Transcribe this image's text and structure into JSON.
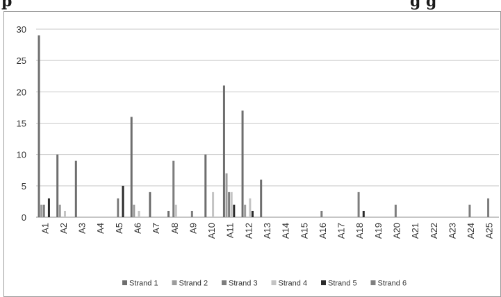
{
  "header_fragment": {
    "left_text": "p",
    "right_text": "g      g"
  },
  "chart_data": {
    "type": "bar",
    "title": "",
    "xlabel": "",
    "ylabel": "",
    "ylim": [
      0,
      30
    ],
    "yticks": [
      0,
      5,
      10,
      15,
      20,
      25,
      30
    ],
    "grid": true,
    "legend_position": "bottom",
    "categories": [
      "A1",
      "A2",
      "A3",
      "A4",
      "A5",
      "A6",
      "A7",
      "A8",
      "A9",
      "A10",
      "A11",
      "A12",
      "A13",
      "A14",
      "A15",
      "A16",
      "A17",
      "A18",
      "A19",
      "A20",
      "A21",
      "A22",
      "A23",
      "A24",
      "A25"
    ],
    "series": [
      {
        "name": "Strand 1",
        "color": "#6e6e6e",
        "values": [
          29,
          10,
          9,
          0,
          0,
          16,
          4,
          1,
          0,
          10,
          21,
          17,
          6,
          0,
          0,
          0,
          0,
          0,
          0,
          0,
          0,
          0,
          0,
          0,
          0
        ]
      },
      {
        "name": "Strand 2",
        "color": "#9c9c9c",
        "values": [
          2,
          2,
          0,
          0,
          0,
          2,
          0,
          0,
          0,
          0,
          7,
          2,
          0,
          0,
          0,
          0,
          0,
          0,
          0,
          0,
          0,
          0,
          0,
          0,
          0
        ]
      },
      {
        "name": "Strand 3",
        "color": "#7d7d7d",
        "values": [
          2,
          0,
          0,
          0,
          3,
          0,
          0,
          9,
          1,
          0,
          4,
          0,
          0,
          0,
          0,
          1,
          0,
          4,
          0,
          2,
          0,
          0,
          0,
          2,
          3
        ]
      },
      {
        "name": "Strand 4",
        "color": "#c4c4c4",
        "values": [
          0,
          1,
          0,
          0,
          0,
          1,
          0,
          2,
          0,
          4,
          4,
          3,
          0,
          0,
          0,
          0,
          0,
          0,
          0,
          0,
          0,
          0,
          0,
          0,
          0
        ]
      },
      {
        "name": "Strand 5",
        "color": "#2b2b2b",
        "values": [
          3,
          0,
          0,
          0,
          5,
          0,
          0,
          0,
          0,
          0,
          2,
          1,
          0,
          0,
          0,
          0,
          0,
          1,
          0,
          0,
          0,
          0,
          0,
          0,
          0
        ]
      },
      {
        "name": "Strand 6",
        "color": "#808080",
        "values": [
          0,
          0,
          0,
          0,
          0,
          0,
          0,
          0,
          0,
          0,
          0,
          0,
          0,
          0,
          0,
          0,
          0,
          0,
          0,
          0,
          0,
          0,
          0,
          0,
          0
        ]
      }
    ]
  }
}
